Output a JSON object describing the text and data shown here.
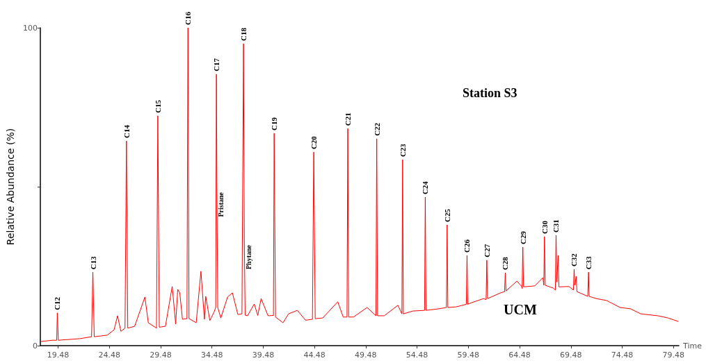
{
  "chart_data": {
    "type": "line",
    "xlabel": "Time",
    "ylabel": "Relative Abundance (%)",
    "xlim": [
      17.75,
      80.0
    ],
    "xticks": [
      19.48,
      24.48,
      29.48,
      34.48,
      39.48,
      44.48,
      49.48,
      54.48,
      59.48,
      64.48,
      69.48,
      74.48,
      79.48
    ],
    "ylim": [
      0,
      100
    ],
    "yticks": [
      0,
      {
        "value": 50,
        "label": null
      },
      100
    ],
    "grid": false,
    "marker": "none",
    "line_style": "solid",
    "series": [
      {
        "color": "#ff0000",
        "x": [
          17.81,
          18.95,
          19.35,
          19.41,
          19.51,
          21.61,
          22.75,
          22.88,
          23.01,
          24.28,
          24.95,
          25.28,
          25.61,
          26.01,
          26.15,
          26.28,
          26.95,
          27.95,
          28.28,
          29.08,
          29.21,
          29.35,
          29.95,
          30.61,
          30.95,
          31.15,
          31.35,
          31.61,
          32.05,
          32.15,
          32.25,
          32.95,
          33.41,
          33.75,
          33.88,
          34.28,
          34.68,
          34.85,
          34.92,
          34.97,
          35.05,
          35.35,
          36.01,
          36.48,
          37.01,
          37.41,
          37.56,
          37.64,
          37.72,
          37.95,
          38.61,
          38.95,
          39.28,
          39.95,
          40.48,
          40.55,
          40.68,
          41.41,
          41.95,
          42.81,
          43.61,
          44.28,
          44.41,
          44.55,
          45.28,
          46.75,
          47.28,
          47.65,
          47.73,
          47.81,
          48.28,
          49.61,
          50.47,
          50.55,
          50.63,
          51.28,
          52.61,
          53.0,
          53.07,
          53.14,
          54.08,
          55.21,
          55.28,
          55.35,
          56.61,
          57.34,
          57.41,
          57.48,
          58.28,
          59.28,
          59.35,
          59.42,
          59.61,
          60.95,
          61.21,
          61.28,
          61.35,
          62.61,
          63.01,
          63.08,
          63.15,
          64.21,
          64.68,
          64.72,
          64.79,
          64.86,
          65.95,
          66.75,
          66.83,
          66.9,
          66.97,
          67.75,
          67.96,
          68.03,
          68.1,
          68.23,
          68.3,
          69.28,
          69.72,
          69.79,
          69.86,
          69.99,
          70.06,
          71.12,
          71.19,
          71.26,
          71.95,
          72.95,
          74.28,
          75.28,
          76.28,
          77.95,
          78.95,
          79.95
        ],
        "values": [
          1.3,
          1.7,
          1.7,
          10.3,
          1.7,
          2.2,
          2.8,
          23.1,
          2.8,
          3.3,
          5.0,
          9.4,
          4.5,
          5.5,
          64.4,
          5.5,
          6.1,
          15.3,
          7.2,
          5.5,
          72.3,
          5.8,
          6.1,
          18.6,
          6.8,
          17.7,
          16.6,
          8.3,
          8.5,
          100,
          8.5,
          7.2,
          23.4,
          8.3,
          15.5,
          7.9,
          10.5,
          12,
          85.4,
          50.0,
          12,
          8.7,
          15.3,
          16.6,
          9.8,
          10.0,
          95.0,
          33.4,
          9.6,
          9.4,
          13.1,
          9.5,
          14.8,
          9.4,
          9.5,
          66.8,
          9.0,
          7.2,
          10.0,
          11.1,
          8.0,
          8.3,
          60.9,
          8.5,
          8.7,
          13.8,
          9.0,
          9.0,
          68.3,
          9.0,
          9.0,
          12.0,
          9.4,
          65.1,
          9.4,
          9.4,
          12.7,
          10.0,
          58.5,
          10.0,
          10.9,
          11.1,
          46.7,
          11.1,
          11.6,
          12.0,
          38.0,
          12.0,
          12.2,
          13.0,
          28.4,
          13.0,
          13.3,
          14.8,
          14.5,
          26.9,
          14.8,
          16.6,
          17.0,
          22.9,
          17.2,
          20.3,
          18.6,
          18.0,
          31.0,
          18.5,
          18.8,
          21.4,
          19.0,
          34.3,
          19.0,
          18.1,
          17.5,
          34.7,
          20.0,
          28.4,
          18.5,
          18.6,
          17.5,
          24.0,
          19.0,
          21.8,
          17.0,
          15.5,
          23.1,
          15.5,
          14.8,
          14.2,
          12.0,
          11.6,
          10.0,
          9.4,
          8.7,
          7.6
        ]
      }
    ],
    "annotations": [
      {
        "text": "C12",
        "x": 19.41,
        "y": 10.3
      },
      {
        "text": "C13",
        "x": 22.88,
        "y": 23.1
      },
      {
        "text": "C14",
        "x": 26.15,
        "y": 64.4
      },
      {
        "text": "C15",
        "x": 29.21,
        "y": 72.3
      },
      {
        "text": "C16",
        "x": 32.15,
        "y": 100
      },
      {
        "text": "C17",
        "x": 34.92,
        "y": 85.4
      },
      {
        "text": "Pristane",
        "x": 34.97,
        "y": 50.0
      },
      {
        "text": "C18",
        "x": 37.56,
        "y": 95.0
      },
      {
        "text": "Phytane",
        "x": 37.64,
        "y": 33.4
      },
      {
        "text": "C19",
        "x": 40.55,
        "y": 66.8
      },
      {
        "text": "C20",
        "x": 44.41,
        "y": 60.9
      },
      {
        "text": "C21",
        "x": 47.73,
        "y": 68.3
      },
      {
        "text": "C22",
        "x": 50.55,
        "y": 65.1
      },
      {
        "text": "C23",
        "x": 53.07,
        "y": 58.5
      },
      {
        "text": "C24",
        "x": 55.28,
        "y": 46.7
      },
      {
        "text": "C25",
        "x": 57.41,
        "y": 38.0
      },
      {
        "text": "C26",
        "x": 59.35,
        "y": 28.4
      },
      {
        "text": "C27",
        "x": 61.28,
        "y": 26.9
      },
      {
        "text": "C28",
        "x": 63.08,
        "y": 22.9
      },
      {
        "text": "C29",
        "x": 64.79,
        "y": 31.0
      },
      {
        "text": "C30",
        "x": 66.9,
        "y": 34.3
      },
      {
        "text": "C31",
        "x": 68.03,
        "y": 34.7
      },
      {
        "text": "C32",
        "x": 69.79,
        "y": 24.0
      },
      {
        "text": "C33",
        "x": 71.19,
        "y": 23.1
      },
      "Station S3",
      "UCM"
    ]
  }
}
